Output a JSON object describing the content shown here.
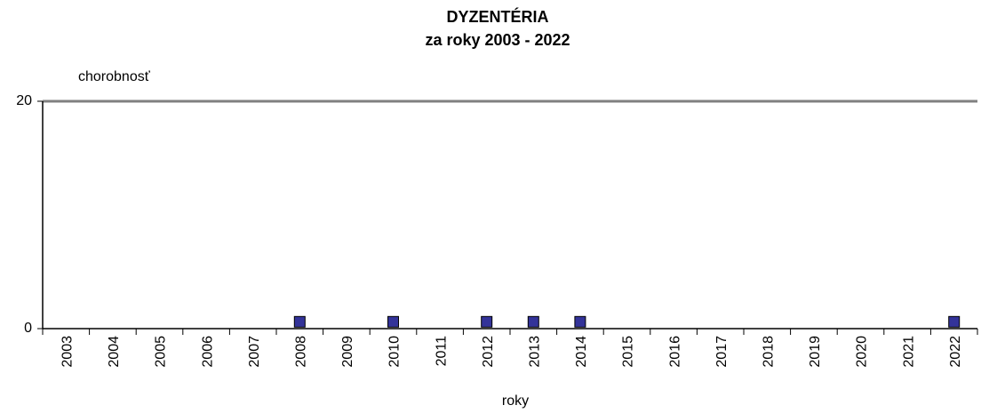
{
  "chart_data": {
    "type": "scatter",
    "title": "DYZENTÉRIA",
    "subtitle": "za roky 2003 - 2022",
    "y_label": "chorobnosť",
    "x_label": "roky",
    "categories": [
      "2003",
      "2004",
      "2005",
      "2006",
      "2007",
      "2008",
      "2009",
      "2010",
      "2011",
      "2012",
      "2013",
      "2014",
      "2015",
      "2016",
      "2017",
      "2018",
      "2019",
      "2020",
      "2021",
      "2022"
    ],
    "values": [
      null,
      null,
      null,
      null,
      null,
      0.6,
      null,
      0.6,
      null,
      0.6,
      0.6,
      0.6,
      null,
      null,
      null,
      null,
      null,
      null,
      null,
      0.6
    ],
    "color": "#333399",
    "ylim": [
      0,
      20
    ],
    "yticks": [
      0,
      20
    ],
    "grid": true
  }
}
